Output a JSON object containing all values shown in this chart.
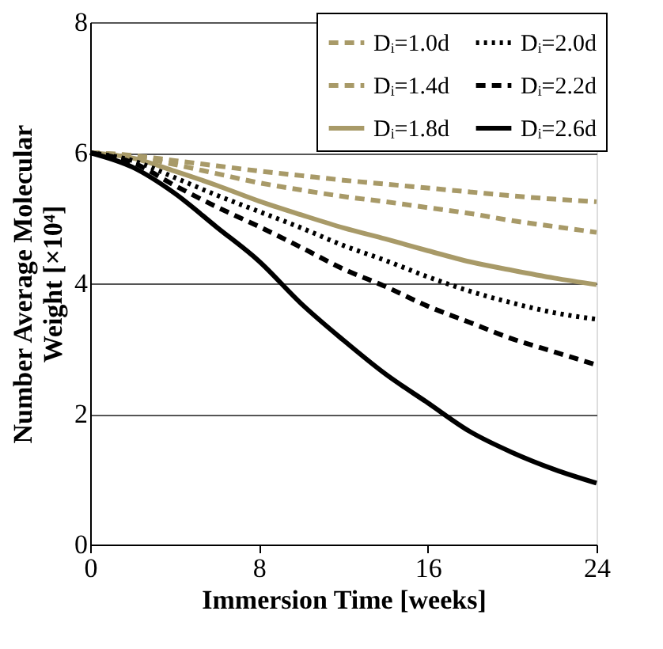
{
  "chart_data": {
    "type": "line",
    "xlabel": "Immersion Time [weeks]",
    "ylabel": "Number Average Molecular Weight [×10⁴]",
    "x": [
      0,
      2,
      4,
      6,
      8,
      10,
      12,
      14,
      16,
      18,
      20,
      22,
      24
    ],
    "xlim": [
      0,
      24
    ],
    "xticks": [
      0,
      8,
      16,
      24
    ],
    "ylim": [
      0,
      8
    ],
    "yticks": [
      0,
      2,
      4,
      6,
      8
    ],
    "grid": "y",
    "legend": "top right",
    "marker": "none",
    "series": [
      {
        "name": "Dᵢ=1.0d",
        "color": "#a89a68",
        "line_style": "dashed",
        "values": [
          6,
          5.96,
          5.88,
          5.8,
          5.72,
          5.65,
          5.58,
          5.52,
          5.46,
          5.4,
          5.34,
          5.29,
          5.25
        ]
      },
      {
        "name": "Dᵢ=1.4d",
        "color": "#a89a68",
        "line_style": "dashed",
        "values": [
          6,
          5.95,
          5.82,
          5.68,
          5.54,
          5.43,
          5.33,
          5.25,
          5.16,
          5.07,
          4.96,
          4.87,
          4.78
        ]
      },
      {
        "name": "Dᵢ=1.8d",
        "color": "#a89a68",
        "line_style": "solid",
        "values": [
          6,
          5.92,
          5.72,
          5.5,
          5.26,
          5.05,
          4.85,
          4.68,
          4.5,
          4.33,
          4.2,
          4.08,
          3.98
        ]
      },
      {
        "name": "Dᵢ=2.0d",
        "color": "#000000",
        "line_style": "dotted",
        "values": [
          6,
          5.88,
          5.62,
          5.35,
          5.1,
          4.85,
          4.58,
          4.35,
          4.1,
          3.88,
          3.7,
          3.55,
          3.45
        ]
      },
      {
        "name": "Dᵢ=2.2d",
        "color": "#000000",
        "line_style": "dashed",
        "values": [
          6,
          5.85,
          5.5,
          5.17,
          4.87,
          4.55,
          4.22,
          3.95,
          3.65,
          3.4,
          3.15,
          2.95,
          2.75
        ]
      },
      {
        "name": "Dᵢ=2.6d",
        "color": "#000000",
        "line_style": "solid",
        "values": [
          6,
          5.78,
          5.38,
          4.86,
          4.34,
          3.69,
          3.13,
          2.61,
          2.17,
          1.73,
          1.41,
          1.15,
          0.94
        ]
      }
    ]
  }
}
